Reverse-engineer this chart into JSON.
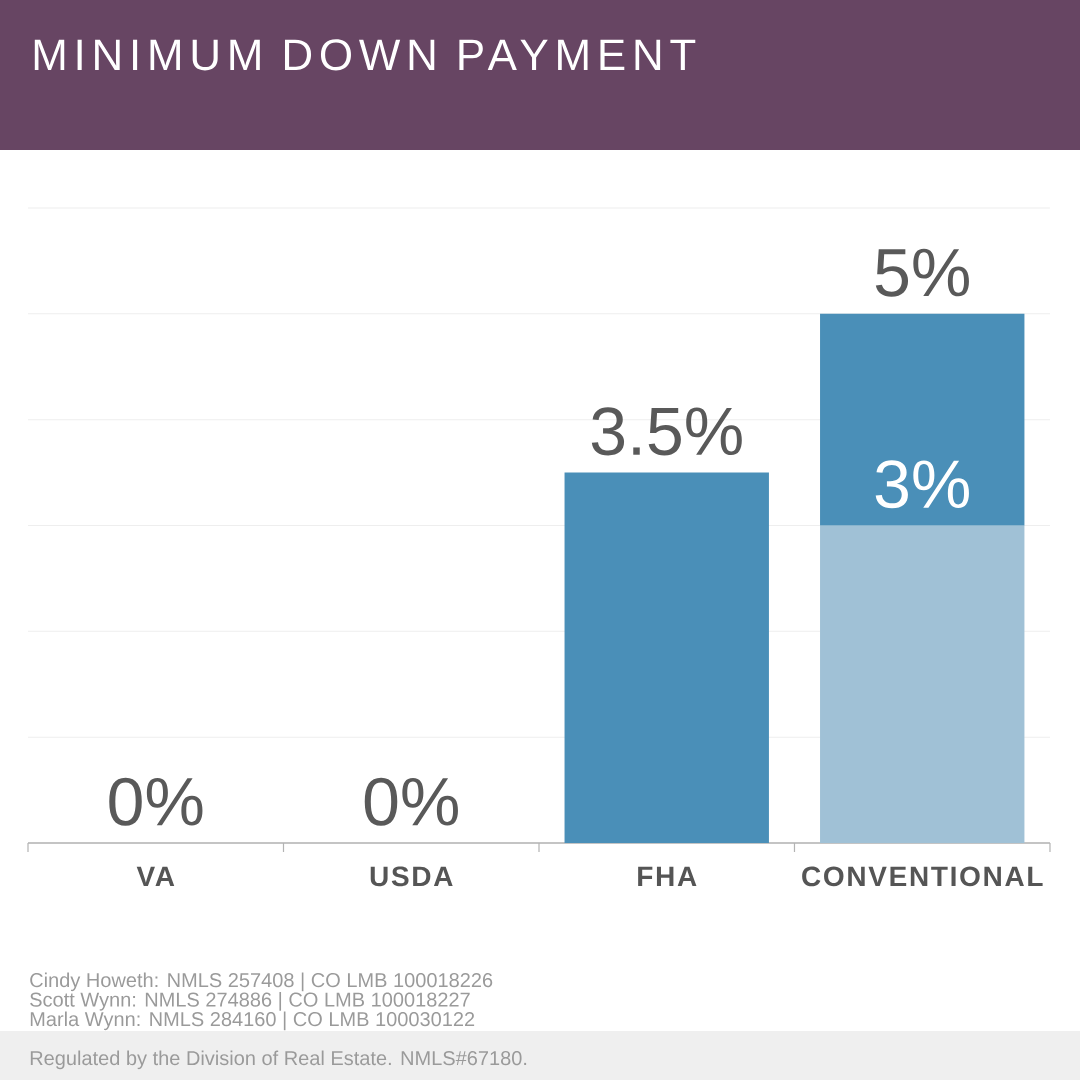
{
  "chart_data": {
    "type": "bar",
    "title": "MINIMUM DOWN PAYMENT",
    "categories": [
      "VA",
      "USDA",
      "FHA",
      "CONVENTIONAL"
    ],
    "stacked": true,
    "series": [
      {
        "colors": [
          "#4a8fb8",
          "#4a8fb8",
          "#4a8fb8",
          "#a0c1d6"
        ],
        "values": [
          0,
          0,
          3.5,
          3
        ],
        "value_labels": [
          "0%",
          "0%",
          "3.5%",
          "3%"
        ]
      },
      {
        "color": "#4a8fb8",
        "values": [
          null,
          null,
          null,
          2
        ]
      }
    ],
    "totals": [
      null,
      null,
      null,
      "5%"
    ],
    "ylim": [
      0,
      6
    ],
    "yticks": [
      {
        "value": 0,
        "label": null
      },
      {
        "value": 1,
        "label": null
      },
      {
        "value": 2,
        "label": null
      },
      {
        "value": 3,
        "label": null
      },
      {
        "value": 4,
        "label": null
      },
      {
        "value": 5,
        "label": null
      },
      {
        "value": 6,
        "label": null
      }
    ],
    "grid": "y",
    "tick_labels": "x",
    "annotations": [
      "Cindy Howeth: NMLS 257408 | CO LMB 100018226",
      "Scott Wynn: NMLS 274886 | CO LMB 100018227",
      "Marla Wynn: NMLS 284160 | CO LMB 100030122",
      "Regulated by the Division of Real Estate. NMLS#67180."
    ]
  }
}
